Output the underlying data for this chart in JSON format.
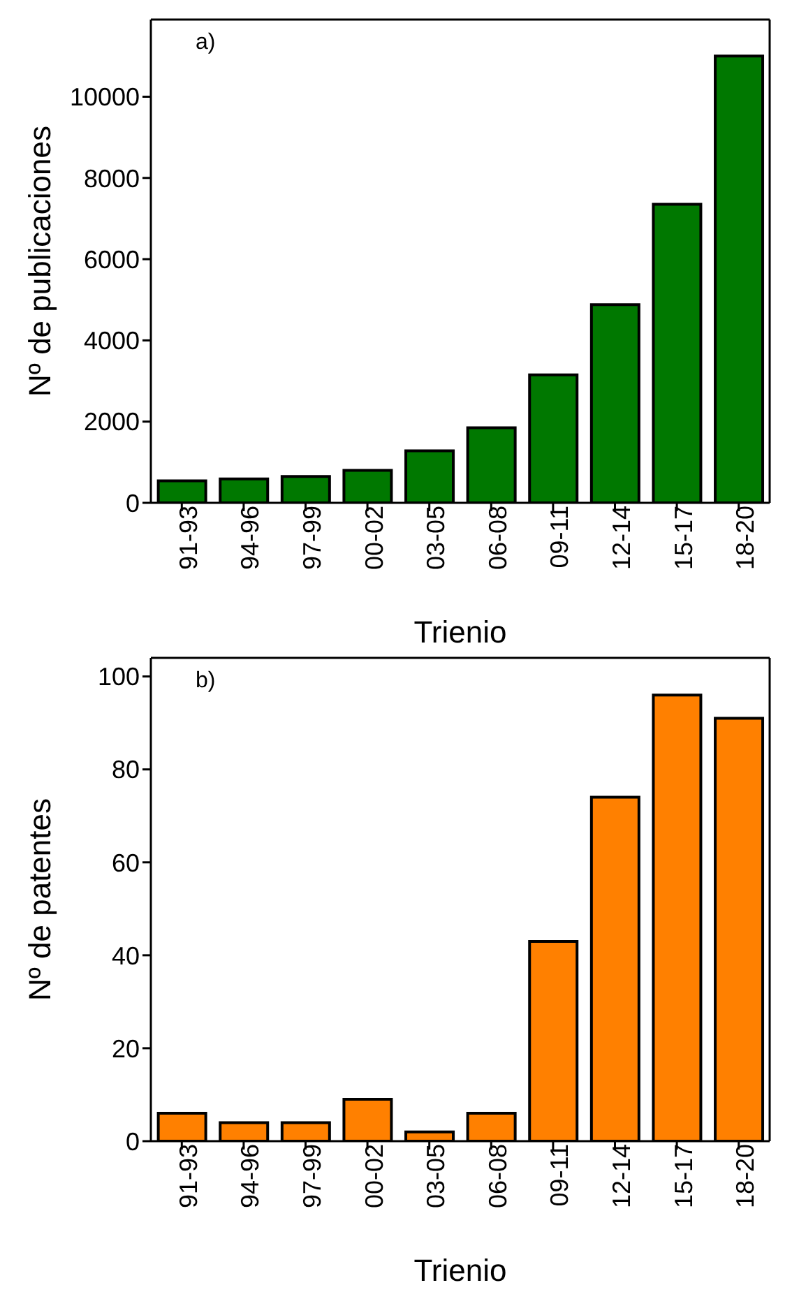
{
  "chart_data": [
    {
      "type": "bar",
      "xlabel": "Trienio",
      "ylabel": "Nº de publicaciones",
      "annotations": [
        "a)"
      ],
      "categories": [
        "91-93",
        "94-96",
        "97-99",
        "00-02",
        "03-05",
        "06-08",
        "09-11",
        "12-14",
        "15-17",
        "18-20"
      ],
      "values": [
        540,
        590,
        650,
        800,
        1280,
        1850,
        3150,
        4880,
        7350,
        11000
      ],
      "color": "#007800",
      "ylim": [
        0,
        11900
      ],
      "yticks": [
        0,
        2000,
        4000,
        6000,
        8000,
        10000
      ]
    },
    {
      "type": "bar",
      "xlabel": "Trienio",
      "ylabel": "Nº de patentes",
      "annotations": [
        "b)"
      ],
      "categories": [
        "91-93",
        "94-96",
        "97-99",
        "00-02",
        "03-05",
        "06-08",
        "09-11",
        "12-14",
        "15-17",
        "18-20"
      ],
      "values": [
        6,
        4,
        4,
        9,
        2,
        6,
        43,
        74,
        96,
        91
      ],
      "color": "#ff8000",
      "ylim": [
        0,
        104
      ],
      "yticks": [
        0,
        20,
        40,
        60,
        80,
        100
      ]
    }
  ]
}
